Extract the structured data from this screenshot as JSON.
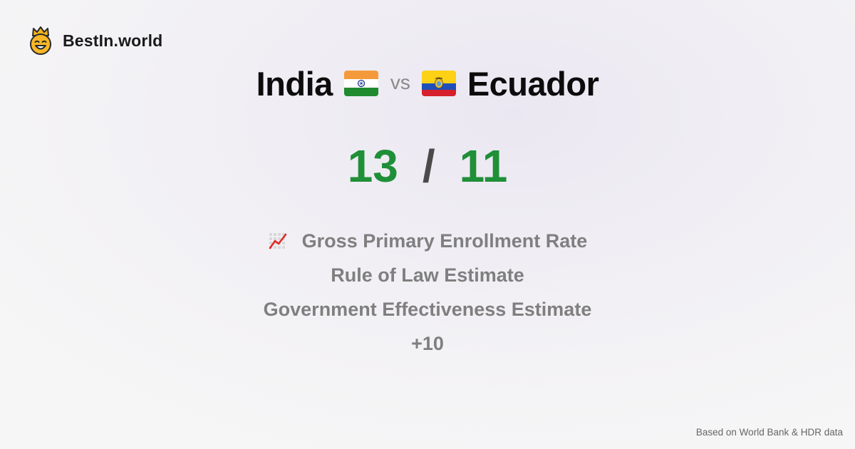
{
  "brand": {
    "name": "BestIn.world",
    "logo_icon": "crowned-smiley-icon"
  },
  "comparison": {
    "left_country": "India",
    "left_flag": "india-flag-icon",
    "vs_label": "vs",
    "right_country": "Ecuador",
    "right_flag": "ecuador-flag-icon"
  },
  "scores": {
    "left": "13",
    "separator": "/",
    "right": "11",
    "color": "#1f8f38"
  },
  "metrics": {
    "icon": "chart-increasing-icon",
    "items": [
      "Gross Primary Enrollment Rate",
      "Rule of Law Estimate",
      "Government Effectiveness Estimate"
    ],
    "more": "+10"
  },
  "footer": {
    "source": "Based on World Bank & HDR data"
  }
}
